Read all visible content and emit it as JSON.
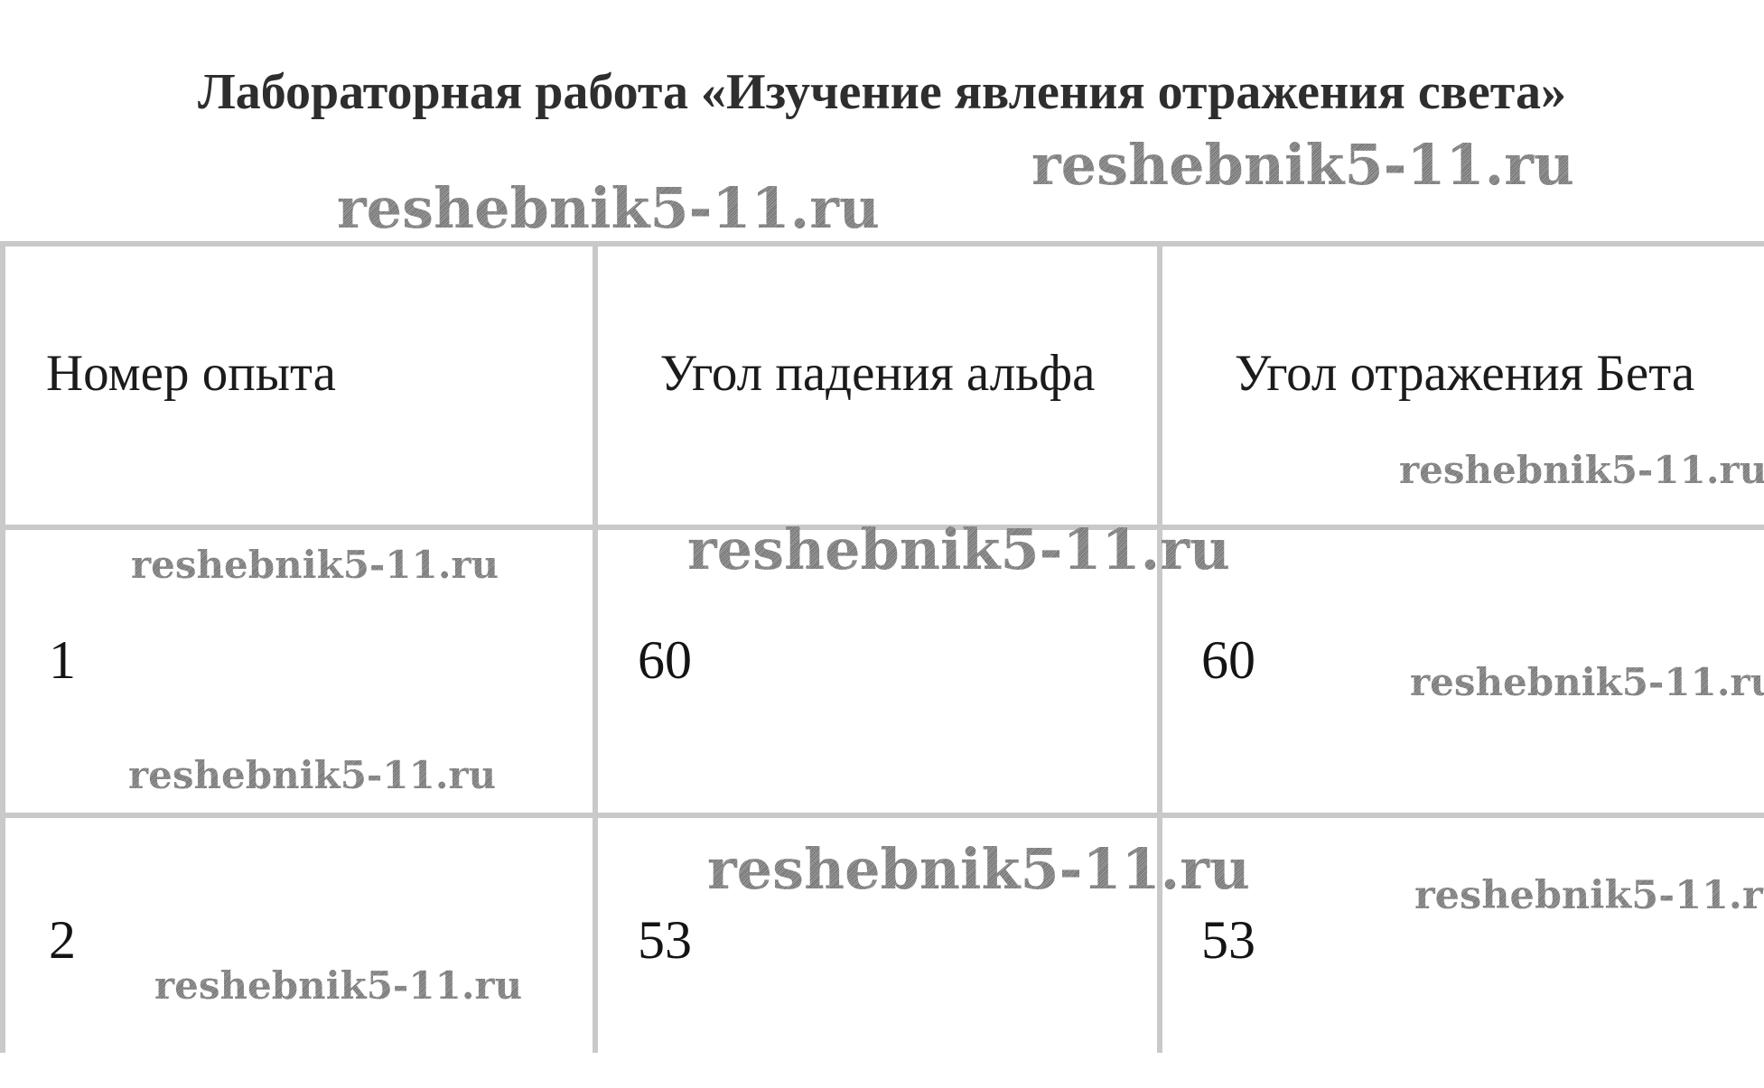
{
  "page": {
    "title": "Лабораторная работа «Изучение явления отражения света»"
  },
  "watermark": {
    "text": "reshebnik5-11.ru"
  },
  "table": {
    "headers": [
      "Номер опыта",
      "Угол падения альфа",
      "Угол отражения Бета"
    ],
    "rows": [
      {
        "num": "1",
        "alpha": "60",
        "beta": "60"
      },
      {
        "num": "2",
        "alpha": "53",
        "beta": "53"
      }
    ]
  }
}
